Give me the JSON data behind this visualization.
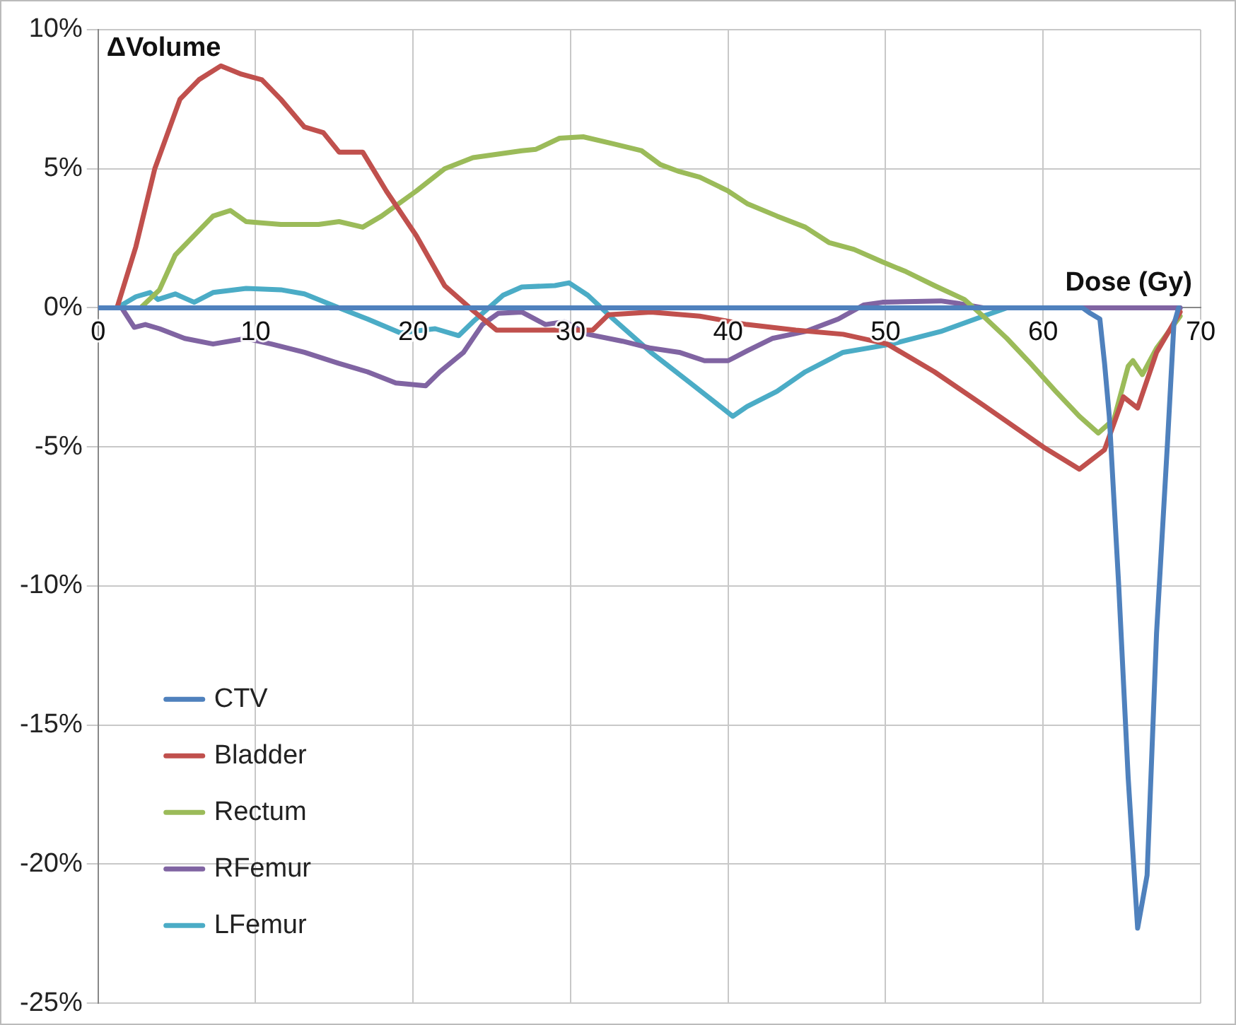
{
  "chart_data": {
    "type": "line",
    "xlabel": "Dose (Gy)",
    "ylabel": "ΔVolume",
    "xlim": [
      0,
      70
    ],
    "xticks": [
      0,
      10,
      20,
      30,
      40,
      50,
      60,
      70
    ],
    "ylim": [
      -25,
      10
    ],
    "yticks": [
      {
        "value": -25,
        "label": "-25%"
      },
      {
        "value": -20,
        "label": "-20%"
      },
      {
        "value": -15,
        "label": "-15%"
      },
      {
        "value": -10,
        "label": "-10%"
      },
      {
        "value": -5,
        "label": "-5%"
      },
      {
        "value": 0,
        "label": "0%"
      },
      {
        "value": 5,
        "label": "5%"
      },
      {
        "value": 10,
        "label": "10%"
      }
    ],
    "grid": true,
    "legend": "bottom left",
    "series": [
      {
        "name": "CTV",
        "color": "#4f81bd",
        "x": [
          0,
          62.5,
          63.0,
          63.6,
          63.9,
          64.2,
          64.8,
          65.4,
          66,
          66.6,
          67.2,
          67.9,
          68.3,
          68.6
        ],
        "values": [
          0,
          0,
          -0.2,
          -0.4,
          -2,
          -3.9,
          -10,
          -16.9,
          -22.3,
          -20.4,
          -11.7,
          -4.8,
          -0.6,
          0
        ]
      },
      {
        "name": "Bladder",
        "color": "#c0504d",
        "x": [
          0,
          1.2,
          2.4,
          3.6,
          5.2,
          6.4,
          7.8,
          9.1,
          10.4,
          11.6,
          13.1,
          14.3,
          15.3,
          16.8,
          18.3,
          20.2,
          22,
          23.8,
          25.3,
          26.9,
          29,
          31.4,
          32.4,
          35.1,
          38.2,
          41.2,
          44.3,
          47.3,
          50.1,
          53.1,
          56.2,
          60,
          62.3,
          63.9,
          65.1,
          66,
          67.2,
          68.7
        ],
        "values": [
          0,
          0,
          2.2,
          5.0,
          7.5,
          8.2,
          8.7,
          8.4,
          8.2,
          7.5,
          6.5,
          6.3,
          5.6,
          5.6,
          4.2,
          2.6,
          0.8,
          -0.1,
          -0.8,
          -0.8,
          -0.8,
          -0.8,
          -0.25,
          -0.15,
          -0.3,
          -0.6,
          -0.8,
          -0.95,
          -1.3,
          -2.3,
          -3.5,
          -5.0,
          -5.8,
          -5.1,
          -3.2,
          -3.6,
          -1.6,
          -0.15
        ]
      },
      {
        "name": "Rectum",
        "color": "#9bbb59",
        "x": [
          0,
          2.7,
          3.9,
          4.9,
          6.1,
          7.3,
          8.4,
          9.4,
          11.6,
          14,
          15.3,
          16.8,
          18,
          20.2,
          22,
          23.8,
          26.9,
          27.8,
          29.3,
          30.8,
          32.7,
          34.5,
          35.7,
          36.9,
          38.2,
          40,
          41.2,
          43.1,
          44.9,
          46.4,
          48,
          49.8,
          51.3,
          53.1,
          55,
          56.2,
          57.7,
          59.2,
          60.8,
          62.3,
          63.5,
          64.5,
          65.4,
          65.7,
          66.3,
          67.2,
          68.7
        ],
        "values": [
          0,
          0,
          0.65,
          1.9,
          2.6,
          3.3,
          3.5,
          3.1,
          3.0,
          3.0,
          3.1,
          2.9,
          3.3,
          4.2,
          5.0,
          5.4,
          5.65,
          5.7,
          6.1,
          6.15,
          5.9,
          5.65,
          5.15,
          4.9,
          4.7,
          4.2,
          3.75,
          3.3,
          2.9,
          2.35,
          2.1,
          1.65,
          1.3,
          0.8,
          0.3,
          -0.3,
          -1.1,
          -2.0,
          -3.0,
          -3.9,
          -4.5,
          -4.0,
          -2.1,
          -1.9,
          -2.4,
          -1.45,
          -0.3
        ]
      },
      {
        "name": "RFemur",
        "color": "#8064a2",
        "x": [
          0,
          1.5,
          2.3,
          3,
          3.9,
          5.5,
          7.3,
          9.4,
          11,
          13.1,
          15.3,
          17.1,
          18.9,
          20.8,
          21.7,
          23.2,
          24.4,
          25.4,
          26.9,
          28.4,
          29.6,
          31.1,
          33.3,
          35.1,
          36.9,
          38.5,
          40,
          41.2,
          42.8,
          44.9,
          47,
          48.6,
          49.8,
          53.5,
          54.7,
          56.2,
          68.7
        ],
        "values": [
          0,
          0,
          -0.7,
          -0.6,
          -0.75,
          -1.1,
          -1.3,
          -1.1,
          -1.3,
          -1.6,
          -2.0,
          -2.3,
          -2.7,
          -2.8,
          -2.3,
          -1.6,
          -0.6,
          -0.2,
          -0.15,
          -0.6,
          -0.5,
          -0.95,
          -1.2,
          -1.45,
          -1.6,
          -1.9,
          -1.9,
          -1.55,
          -1.1,
          -0.85,
          -0.4,
          0.1,
          0.2,
          0.25,
          0.15,
          0,
          0
        ]
      },
      {
        "name": "LFemur",
        "color": "#4bacc6",
        "x": [
          0,
          1.2,
          2.4,
          3.3,
          3.8,
          4.9,
          6.1,
          7.3,
          9.4,
          11.6,
          13.1,
          15.3,
          17.1,
          19.2,
          21.4,
          22.9,
          23.8,
          25.7,
          26.9,
          29,
          29.9,
          31.1,
          32.7,
          35.1,
          37.6,
          39.4,
          40.3,
          41.2,
          43.1,
          44.9,
          47.3,
          50.4,
          53.5,
          56.2,
          57.7,
          68.7
        ],
        "values": [
          0,
          0,
          0.4,
          0.55,
          0.3,
          0.5,
          0.2,
          0.55,
          0.7,
          0.65,
          0.5,
          0,
          -0.4,
          -0.9,
          -0.75,
          -1.0,
          -0.5,
          0.45,
          0.75,
          0.8,
          0.9,
          0.45,
          -0.4,
          -1.6,
          -2.7,
          -3.5,
          -3.9,
          -3.55,
          -3.0,
          -2.3,
          -1.6,
          -1.3,
          -0.85,
          -0.3,
          0,
          0
        ]
      }
    ]
  }
}
